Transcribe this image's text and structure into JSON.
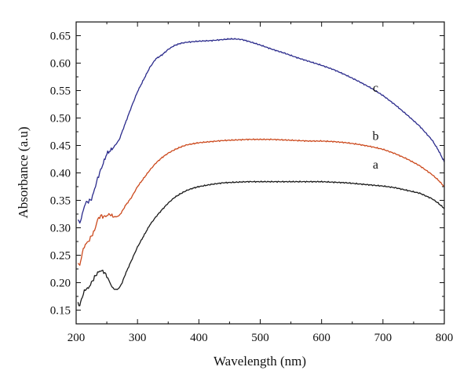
{
  "chart_data": {
    "type": "line",
    "title": "",
    "xlabel": "Wavelength (nm)",
    "ylabel": "Absorbance (a.u)",
    "xlim": [
      200,
      800
    ],
    "ylim": [
      0.125,
      0.675
    ],
    "x_ticks": [
      200,
      300,
      400,
      500,
      600,
      700,
      800
    ],
    "x_tick_labels": [
      "200",
      "300",
      "400",
      "500",
      "600",
      "700",
      "800"
    ],
    "y_ticks": [
      0.15,
      0.2,
      0.25,
      0.3,
      0.35,
      0.4,
      0.45,
      0.5,
      0.55,
      0.6,
      0.65
    ],
    "y_tick_labels": [
      "0.15",
      "0.20",
      "0.25",
      "0.30",
      "0.35",
      "0.40",
      "0.45",
      "0.50",
      "0.55",
      "0.60",
      "0.65"
    ],
    "grid": false,
    "legend": "none",
    "series": [
      {
        "name": "a",
        "color": "#1a1a1a",
        "points": [
          [
            203,
            0.163
          ],
          [
            206,
            0.158
          ],
          [
            210,
            0.175
          ],
          [
            215,
            0.188
          ],
          [
            220,
            0.19
          ],
          [
            225,
            0.2
          ],
          [
            230,
            0.21
          ],
          [
            235,
            0.218
          ],
          [
            240,
            0.222
          ],
          [
            245,
            0.22
          ],
          [
            250,
            0.212
          ],
          [
            255,
            0.2
          ],
          [
            260,
            0.19
          ],
          [
            265,
            0.187
          ],
          [
            270,
            0.19
          ],
          [
            275,
            0.2
          ],
          [
            280,
            0.215
          ],
          [
            290,
            0.24
          ],
          [
            300,
            0.265
          ],
          [
            310,
            0.285
          ],
          [
            320,
            0.305
          ],
          [
            330,
            0.32
          ],
          [
            340,
            0.333
          ],
          [
            350,
            0.345
          ],
          [
            360,
            0.355
          ],
          [
            370,
            0.362
          ],
          [
            380,
            0.368
          ],
          [
            390,
            0.372
          ],
          [
            400,
            0.375
          ],
          [
            420,
            0.379
          ],
          [
            440,
            0.382
          ],
          [
            460,
            0.383
          ],
          [
            480,
            0.384
          ],
          [
            500,
            0.384
          ],
          [
            520,
            0.384
          ],
          [
            540,
            0.384
          ],
          [
            560,
            0.384
          ],
          [
            580,
            0.384
          ],
          [
            600,
            0.384
          ],
          [
            620,
            0.383
          ],
          [
            640,
            0.382
          ],
          [
            660,
            0.38
          ],
          [
            680,
            0.378
          ],
          [
            700,
            0.376
          ],
          [
            720,
            0.373
          ],
          [
            740,
            0.368
          ],
          [
            760,
            0.363
          ],
          [
            780,
            0.353
          ],
          [
            790,
            0.345
          ],
          [
            800,
            0.335
          ]
        ]
      },
      {
        "name": "b",
        "color": "#cc4a1e",
        "points": [
          [
            203,
            0.238
          ],
          [
            206,
            0.23
          ],
          [
            210,
            0.255
          ],
          [
            215,
            0.27
          ],
          [
            220,
            0.275
          ],
          [
            225,
            0.285
          ],
          [
            230,
            0.295
          ],
          [
            235,
            0.315
          ],
          [
            240,
            0.322
          ],
          [
            245,
            0.32
          ],
          [
            250,
            0.322
          ],
          [
            255,
            0.325
          ],
          [
            260,
            0.32
          ],
          [
            265,
            0.32
          ],
          [
            270,
            0.322
          ],
          [
            275,
            0.33
          ],
          [
            280,
            0.34
          ],
          [
            290,
            0.355
          ],
          [
            300,
            0.375
          ],
          [
            310,
            0.39
          ],
          [
            320,
            0.405
          ],
          [
            330,
            0.418
          ],
          [
            340,
            0.428
          ],
          [
            350,
            0.436
          ],
          [
            360,
            0.442
          ],
          [
            370,
            0.447
          ],
          [
            380,
            0.451
          ],
          [
            390,
            0.453
          ],
          [
            400,
            0.455
          ],
          [
            420,
            0.457
          ],
          [
            440,
            0.459
          ],
          [
            460,
            0.46
          ],
          [
            480,
            0.461
          ],
          [
            500,
            0.461
          ],
          [
            520,
            0.461
          ],
          [
            540,
            0.46
          ],
          [
            560,
            0.459
          ],
          [
            580,
            0.458
          ],
          [
            600,
            0.458
          ],
          [
            620,
            0.457
          ],
          [
            640,
            0.455
          ],
          [
            660,
            0.452
          ],
          [
            680,
            0.448
          ],
          [
            700,
            0.443
          ],
          [
            720,
            0.435
          ],
          [
            740,
            0.425
          ],
          [
            760,
            0.413
          ],
          [
            780,
            0.397
          ],
          [
            790,
            0.387
          ],
          [
            800,
            0.375
          ]
        ]
      },
      {
        "name": "c",
        "color": "#2b2b8c",
        "points": [
          [
            203,
            0.315
          ],
          [
            206,
            0.308
          ],
          [
            210,
            0.325
          ],
          [
            215,
            0.345
          ],
          [
            220,
            0.348
          ],
          [
            225,
            0.352
          ],
          [
            230,
            0.37
          ],
          [
            235,
            0.39
          ],
          [
            240,
            0.405
          ],
          [
            250,
            0.435
          ],
          [
            260,
            0.445
          ],
          [
            270,
            0.46
          ],
          [
            280,
            0.49
          ],
          [
            290,
            0.52
          ],
          [
            300,
            0.548
          ],
          [
            310,
            0.57
          ],
          [
            320,
            0.592
          ],
          [
            330,
            0.608
          ],
          [
            340,
            0.615
          ],
          [
            350,
            0.625
          ],
          [
            360,
            0.632
          ],
          [
            370,
            0.636
          ],
          [
            380,
            0.638
          ],
          [
            400,
            0.64
          ],
          [
            420,
            0.641
          ],
          [
            440,
            0.643
          ],
          [
            450,
            0.644
          ],
          [
            460,
            0.644
          ],
          [
            470,
            0.643
          ],
          [
            480,
            0.64
          ],
          [
            500,
            0.633
          ],
          [
            520,
            0.625
          ],
          [
            540,
            0.618
          ],
          [
            560,
            0.61
          ],
          [
            580,
            0.603
          ],
          [
            600,
            0.596
          ],
          [
            620,
            0.588
          ],
          [
            640,
            0.578
          ],
          [
            660,
            0.567
          ],
          [
            680,
            0.555
          ],
          [
            700,
            0.541
          ],
          [
            720,
            0.524
          ],
          [
            740,
            0.505
          ],
          [
            760,
            0.485
          ],
          [
            780,
            0.46
          ],
          [
            790,
            0.442
          ],
          [
            800,
            0.42
          ]
        ]
      }
    ],
    "annotations": [
      {
        "text": "a",
        "x": 688,
        "y": 0.408
      },
      {
        "text": "b",
        "x": 688,
        "y": 0.46
      },
      {
        "text": "c",
        "x": 688,
        "y": 0.548
      }
    ]
  }
}
